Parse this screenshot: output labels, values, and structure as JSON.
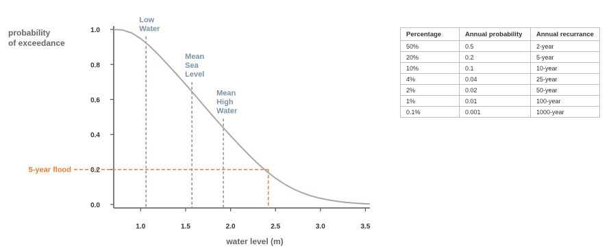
{
  "chart_data": {
    "type": "line",
    "ylabel": "probability of exceedance",
    "ylabel_lines": [
      "probability",
      "of exceedance"
    ],
    "xlabel": "water level (m)",
    "xlim": [
      0.7,
      3.55
    ],
    "ylim": [
      -0.02,
      1.02
    ],
    "x_ticks": [
      1.0,
      1.5,
      2.0,
      2.5,
      3.0,
      3.5
    ],
    "x_tick_labels": [
      "1.0",
      "1.5",
      "2.0",
      "2.5",
      "3.0",
      "3.5"
    ],
    "y_ticks": [
      0.0,
      0.2,
      0.4,
      0.6,
      0.8,
      1.0
    ],
    "y_tick_labels": [
      "0.0",
      "0.2",
      "0.4",
      "0.6",
      "0.8",
      "1.0"
    ],
    "grid": false,
    "curve_color": "#b0a69d",
    "series": [
      {
        "x": [
          0.7,
          0.8,
          0.9,
          1.0,
          1.1,
          1.2,
          1.3,
          1.4,
          1.5,
          1.6,
          1.7,
          1.8,
          1.9,
          2.0,
          2.1,
          2.2,
          2.3,
          2.4,
          2.5,
          2.6,
          2.7,
          2.8,
          2.9,
          3.0,
          3.1,
          3.2,
          3.3,
          3.4,
          3.5,
          3.55
        ],
        "y": [
          1.0,
          0.997,
          0.98,
          0.948,
          0.905,
          0.855,
          0.8,
          0.744,
          0.686,
          0.627,
          0.567,
          0.507,
          0.449,
          0.393,
          0.338,
          0.285,
          0.235,
          0.19,
          0.15,
          0.116,
          0.088,
          0.066,
          0.048,
          0.035,
          0.025,
          0.017,
          0.011,
          0.007,
          0.004,
          0.003
        ]
      }
    ],
    "reference_lines": [
      {
        "label_lines": [
          "Low",
          "Water"
        ],
        "x": 1.06,
        "y": 0.96,
        "color": "#7a92a8"
      },
      {
        "label_lines": [
          "Mean",
          "Sea",
          "Level"
        ],
        "x": 1.57,
        "y": 0.7,
        "color": "#7a92a8"
      },
      {
        "label_lines": [
          "Mean",
          "High",
          "Water"
        ],
        "x": 1.92,
        "y": 0.49,
        "color": "#7a92a8"
      }
    ],
    "flood_marker": {
      "label": "5-year flood",
      "x": 2.42,
      "y": 0.2,
      "color": "#ef7d32"
    }
  },
  "table": {
    "headers": [
      "Percentage",
      "Annual probability",
      "Annual recurrance"
    ],
    "rows": [
      [
        "50%",
        "0.5",
        "2-year"
      ],
      [
        "20%",
        "0.2",
        "5-year"
      ],
      [
        "10%",
        "0.1",
        "10-year"
      ],
      [
        "4%",
        "0.04",
        "25-year"
      ],
      [
        "2%",
        "0.02",
        "50-year"
      ],
      [
        "1%",
        "0.01",
        "100-year"
      ],
      [
        "0.1%",
        "0.001",
        "1000-year"
      ]
    ]
  }
}
